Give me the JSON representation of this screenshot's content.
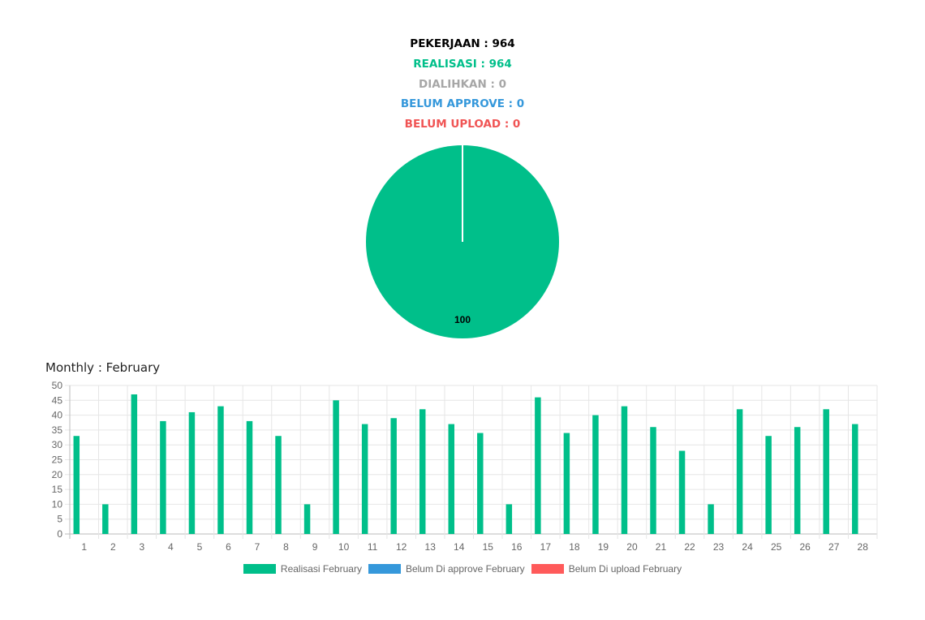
{
  "summary": {
    "pekerjaan": "PEKERJAAN : 964",
    "realisasi": "REALISASI : 964",
    "dialihkan": "DIALIHKAN : 0",
    "belum_approve": "BELUM APPROVE : 0",
    "belum_upload": "BELUM UPLOAD : 0"
  },
  "monthly_title": "Monthly : February",
  "colors": {
    "realisasi": "#00bf8a",
    "belum_approve": "#3598db",
    "belum_upload": "#ff5a5a",
    "dialihkan": "#a6a6a6"
  },
  "chart_data": [
    {
      "type": "pie",
      "categories": [
        "Realisasi",
        "Belum Approve",
        "Belum Upload"
      ],
      "values": [
        100,
        0,
        0
      ],
      "data_labels": [
        "100"
      ]
    },
    {
      "type": "bar",
      "title": "Monthly : February",
      "categories": [
        "1",
        "2",
        "3",
        "4",
        "5",
        "6",
        "7",
        "8",
        "9",
        "10",
        "11",
        "12",
        "13",
        "14",
        "15",
        "16",
        "17",
        "18",
        "19",
        "20",
        "21",
        "22",
        "23",
        "24",
        "25",
        "26",
        "27",
        "28"
      ],
      "series": [
        {
          "name": "Realisasi February",
          "color": "#00bf8a",
          "values": [
            33,
            10,
            47,
            38,
            41,
            43,
            38,
            33,
            10,
            45,
            37,
            39,
            42,
            37,
            34,
            10,
            46,
            34,
            40,
            43,
            36,
            28,
            10,
            42,
            33,
            36,
            42,
            37
          ]
        },
        {
          "name": "Belum Di approve February",
          "color": "#3598db",
          "values": [
            0,
            0,
            0,
            0,
            0,
            0,
            0,
            0,
            0,
            0,
            0,
            0,
            0,
            0,
            0,
            0,
            0,
            0,
            0,
            0,
            0,
            0,
            0,
            0,
            0,
            0,
            0,
            0
          ]
        },
        {
          "name": "Belum Di upload February",
          "color": "#ff5a5a",
          "values": [
            0,
            0,
            0,
            0,
            0,
            0,
            0,
            0,
            0,
            0,
            0,
            0,
            0,
            0,
            0,
            0,
            0,
            0,
            0,
            0,
            0,
            0,
            0,
            0,
            0,
            0,
            0,
            0
          ]
        }
      ],
      "y_ticks": [
        "0",
        "5",
        "10",
        "15",
        "20",
        "25",
        "30",
        "35",
        "40",
        "45",
        "50"
      ],
      "ylim": [
        0,
        50
      ],
      "grid": true,
      "legend_position": "bottom"
    }
  ]
}
